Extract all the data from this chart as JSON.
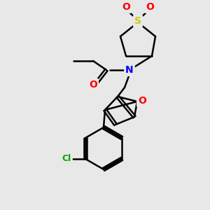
{
  "bg_color": "#e8e8e8",
  "bond_color": "#000000",
  "atom_colors": {
    "O": "#ff0000",
    "N": "#0000ff",
    "S": "#cccc00",
    "Cl": "#00aa00"
  },
  "figsize": [
    3.0,
    3.0
  ],
  "dpi": 100
}
